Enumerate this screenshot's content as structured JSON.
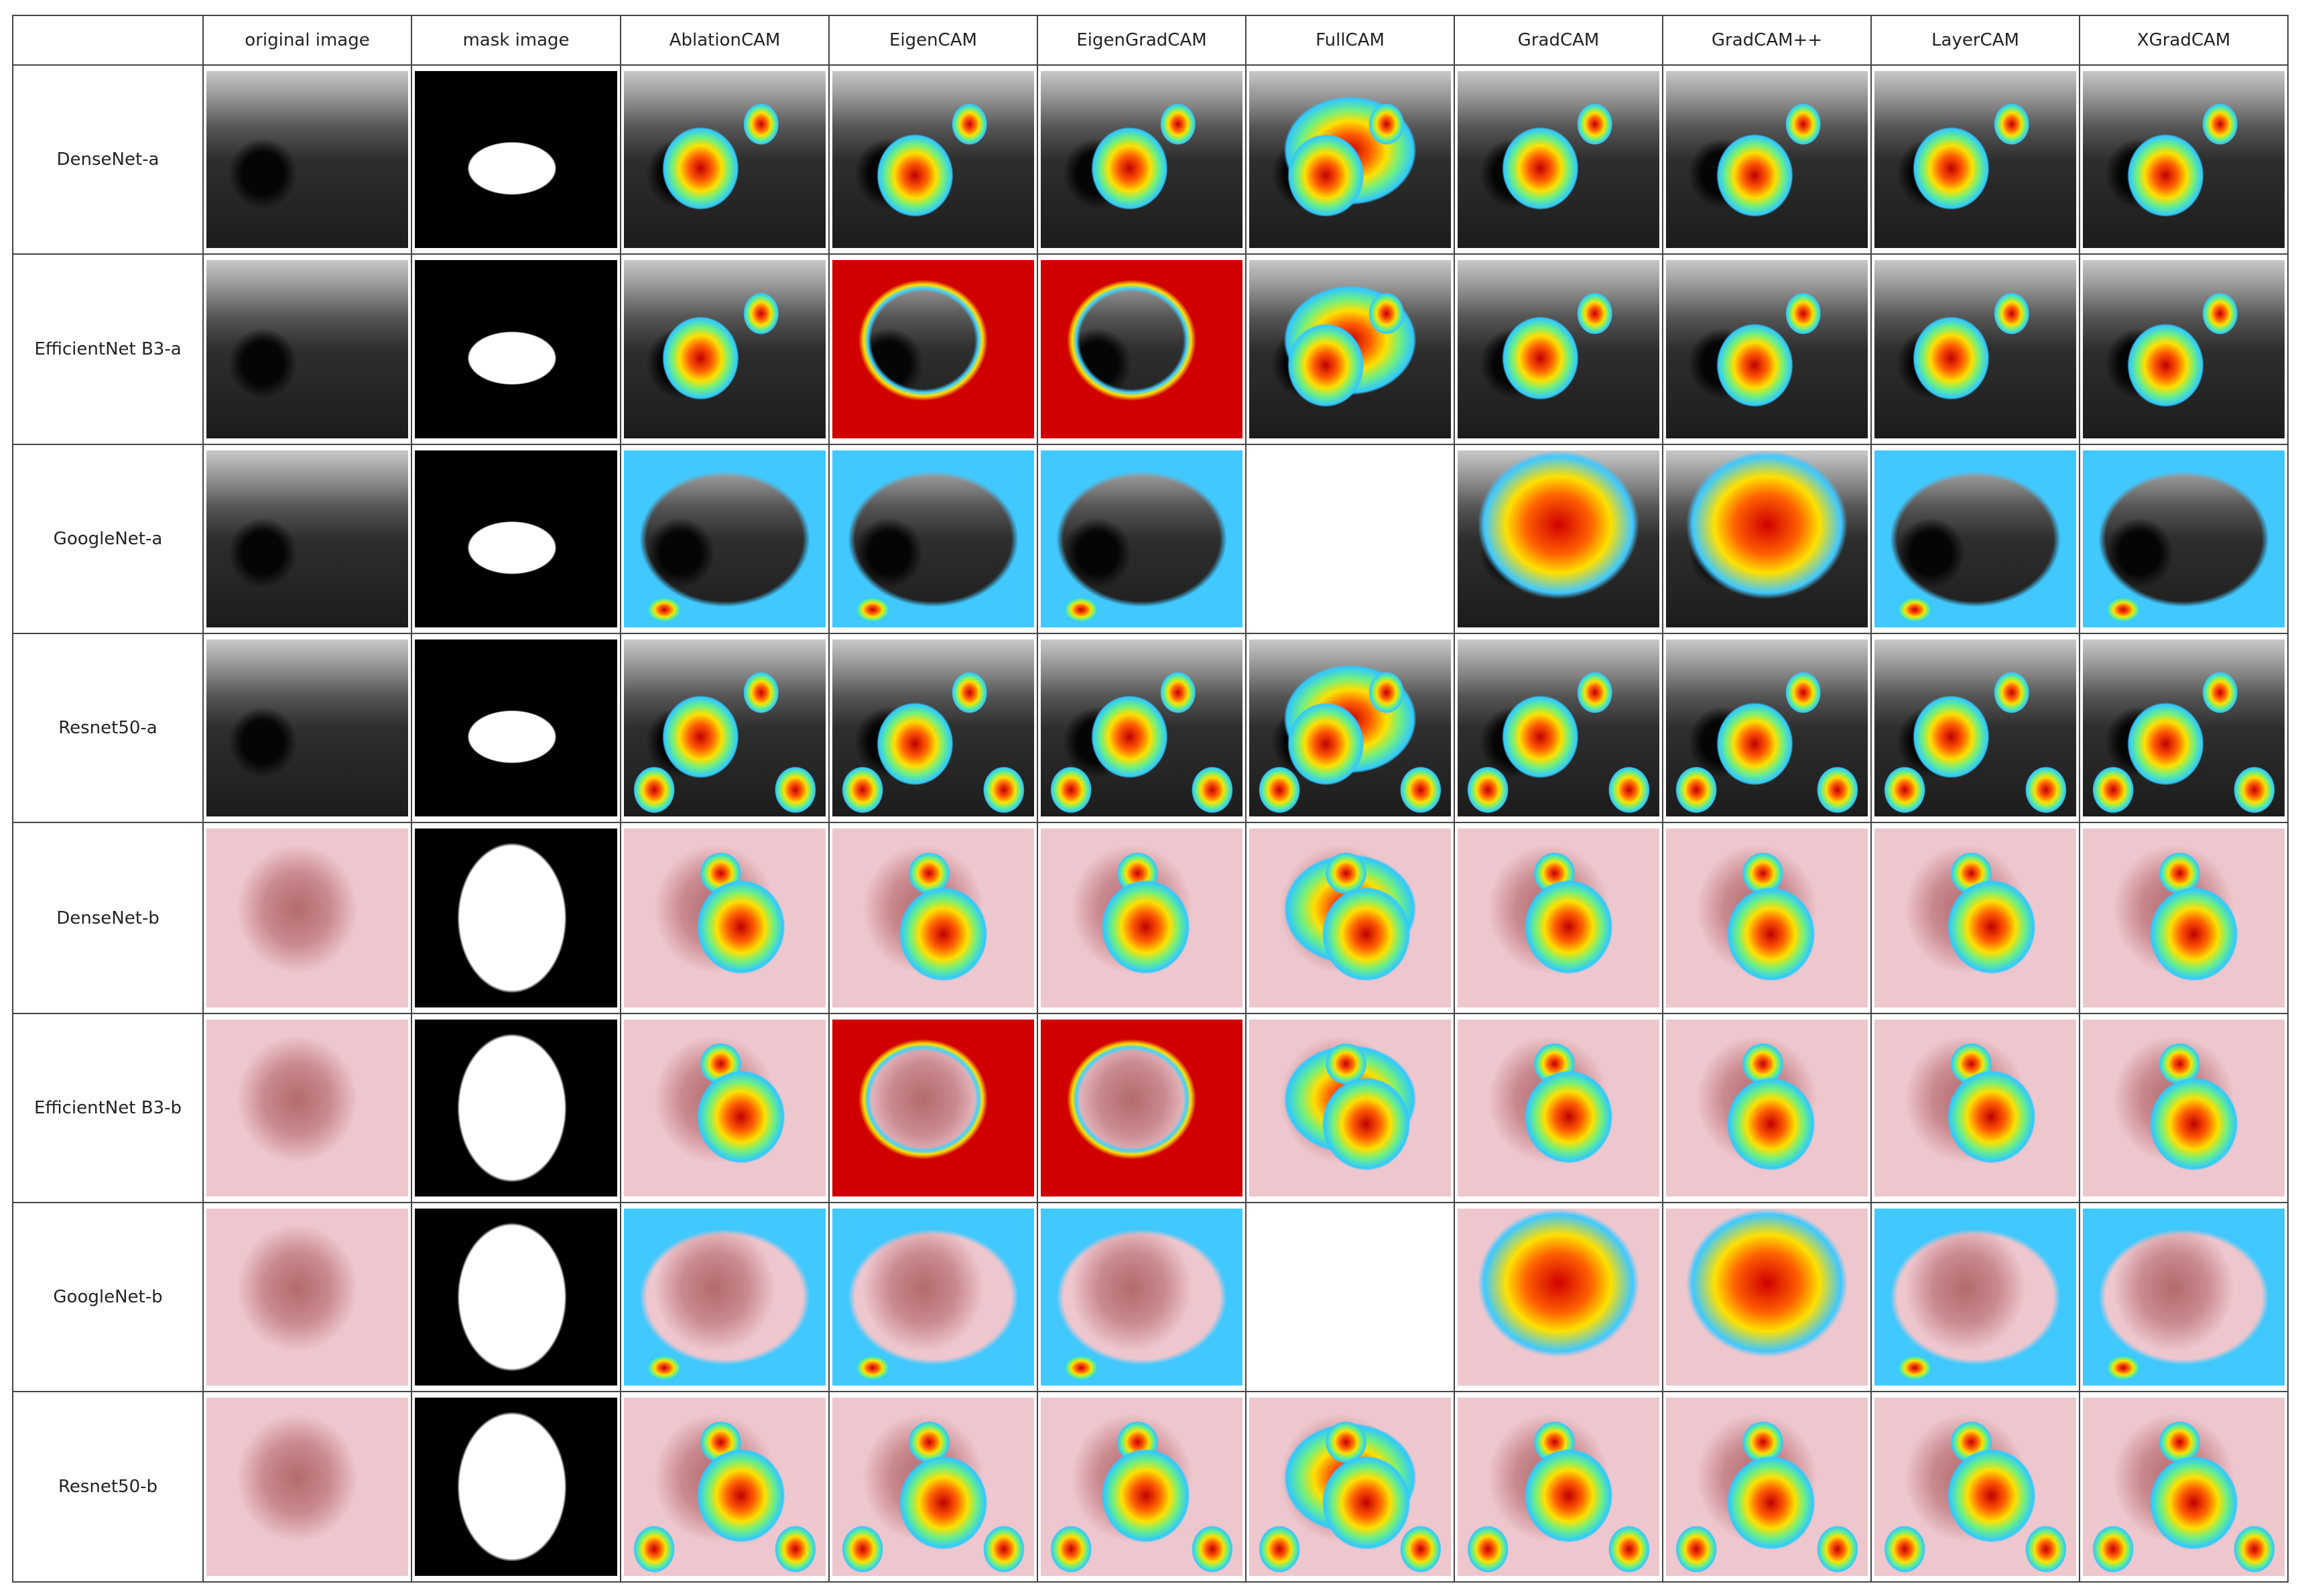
{
  "table": {
    "header": [
      "original image",
      "mask image",
      "AblationCAM",
      "EigenCAM",
      "EigenGradCAM",
      "FullCAM",
      "GradCAM",
      "GradCAM++",
      "LayerCAM",
      "XGradCAM"
    ],
    "rows": [
      "DenseNet-a",
      "EfficientNet B3-a",
      "GoogleNet-a",
      "Resnet50-a",
      "DenseNet-b",
      "EfficientNet B3-b",
      "GoogleNet-b",
      "Resnet50-b"
    ]
  }
}
